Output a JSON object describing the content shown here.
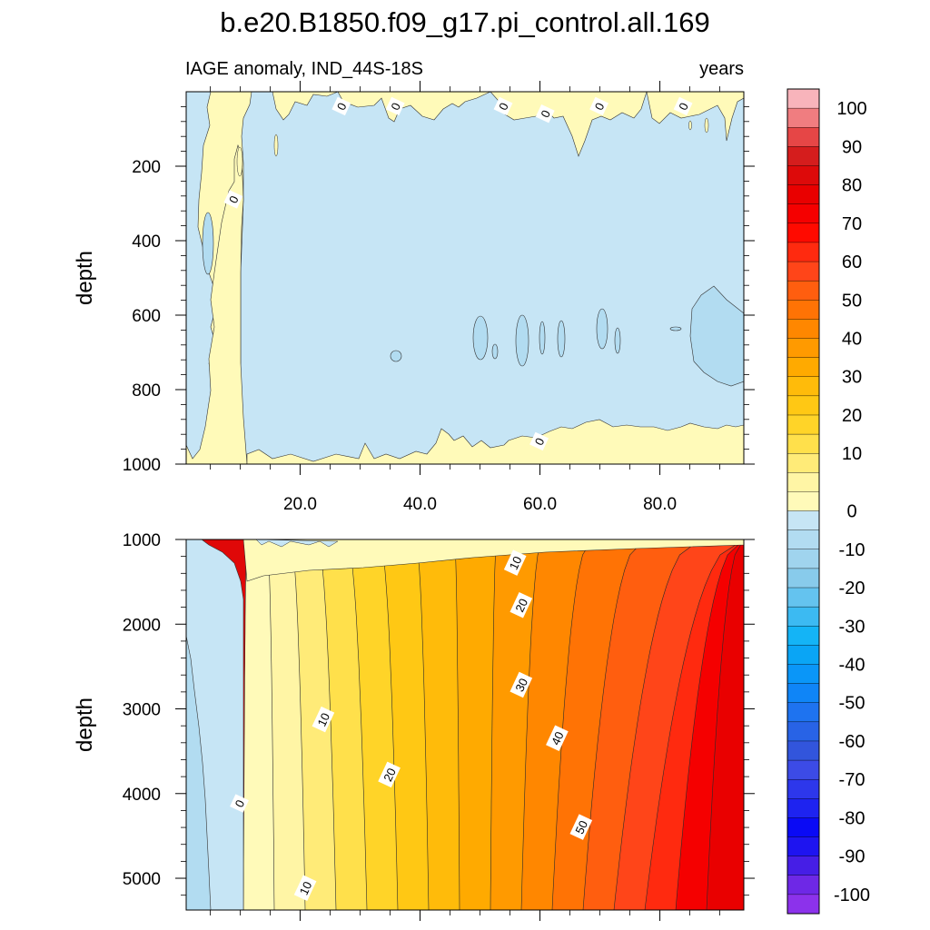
{
  "title": "b.e20.B1850.f09_g17.pi_control.all.169",
  "subtitle_left": "IAGE anomaly, IND_44S-18S",
  "subtitle_right": "years",
  "chart_data": [
    {
      "type": "heatmap",
      "panel": "upper",
      "ylabel": "depth",
      "xlim": [
        1,
        94
      ],
      "ylim": [
        0,
        1000
      ],
      "y_reversed": true,
      "x_ticks": [
        "20.0",
        "40.0",
        "60.0",
        "80.0"
      ],
      "x_tick_values": [
        20,
        40,
        60,
        80
      ],
      "y_ticks": [
        "200",
        "400",
        "600",
        "800",
        "1000"
      ],
      "y_tick_values": [
        200,
        400,
        600,
        800,
        1000
      ],
      "contour_labels": [
        {
          "text": "0",
          "x": 27,
          "y": 40
        },
        {
          "text": "0",
          "x": 36,
          "y": 40
        },
        {
          "text": "0",
          "x": 54,
          "y": 40
        },
        {
          "text": "0",
          "x": 61,
          "y": 60
        },
        {
          "text": "0",
          "x": 70,
          "y": 40
        },
        {
          "text": "0",
          "x": 84,
          "y": 40
        },
        {
          "text": "0",
          "x": 9,
          "y": 290
        },
        {
          "text": "0",
          "x": 60,
          "y": 940
        }
      ],
      "description_values": "near 0 to -10 over most of the panel; 0 to 10 near the surface, along the left edge and below about 900 m"
    },
    {
      "type": "heatmap",
      "panel": "lower",
      "ylabel": "depth",
      "xlim": [
        1,
        94
      ],
      "ylim": [
        1000,
        5375
      ],
      "y_reversed": true,
      "y_ticks": [
        "1000",
        "2000",
        "3000",
        "4000",
        "5000"
      ],
      "y_tick_values": [
        1000,
        2000,
        3000,
        4000,
        5000
      ],
      "contour_labels": [
        {
          "text": "10",
          "x": 56,
          "y": 1280
        },
        {
          "text": "20",
          "x": 57,
          "y": 1780
        },
        {
          "text": "30",
          "x": 57,
          "y": 2720
        },
        {
          "text": "40",
          "x": 63,
          "y": 3350
        },
        {
          "text": "50",
          "x": 67,
          "y": 4400
        },
        {
          "text": "10",
          "x": 24,
          "y": 3130
        },
        {
          "text": "20",
          "x": 35,
          "y": 3780
        },
        {
          "text": "0",
          "x": 10,
          "y": 4120
        },
        {
          "text": "10",
          "x": 21,
          "y": 5120
        }
      ],
      "max_value_approx": 90,
      "min_value_approx": -10
    }
  ],
  "colorbar": {
    "tick_labels": [
      "100",
      "90",
      "80",
      "70",
      "60",
      "50",
      "40",
      "30",
      "20",
      "10",
      "0",
      "-10",
      "-20",
      "-30",
      "-40",
      "-50",
      "-60",
      "-70",
      "-80",
      "-90",
      "-100"
    ],
    "tick_values": [
      100,
      90,
      80,
      70,
      60,
      50,
      40,
      30,
      20,
      10,
      0,
      -10,
      -20,
      -30,
      -40,
      -50,
      -60,
      -70,
      -80,
      -90,
      -100
    ],
    "levels_step": 5,
    "colors_top_to_bottom": [
      "#f8b4bb",
      "#f07d80",
      "#e64646",
      "#d51d1d",
      "#dd0a0a",
      "#e90000",
      "#f50000",
      "#ff0a00",
      "#ff2a0f",
      "#ff4519",
      "#ff5e0f",
      "#ff7305",
      "#ff8700",
      "#ff9a00",
      "#ffaa00",
      "#ffbb0a",
      "#ffc814",
      "#ffd428",
      "#ffe04b",
      "#ffeb78",
      "#fff5a5",
      "#fffab9",
      "#c6e5f5",
      "#b2dcf1",
      "#a0d4ee",
      "#88cbeb",
      "#64c3ef",
      "#3cbaf2",
      "#14b4f6",
      "#0aa5f5",
      "#0a96f8",
      "#0f85f7",
      "#1e73f0",
      "#2863e6",
      "#3255dc",
      "#3c4be6",
      "#2d37eb",
      "#1e23f0",
      "#0a0af5",
      "#1e14f0",
      "#461ee6",
      "#6e28e6",
      "#8c32eb"
    ]
  }
}
